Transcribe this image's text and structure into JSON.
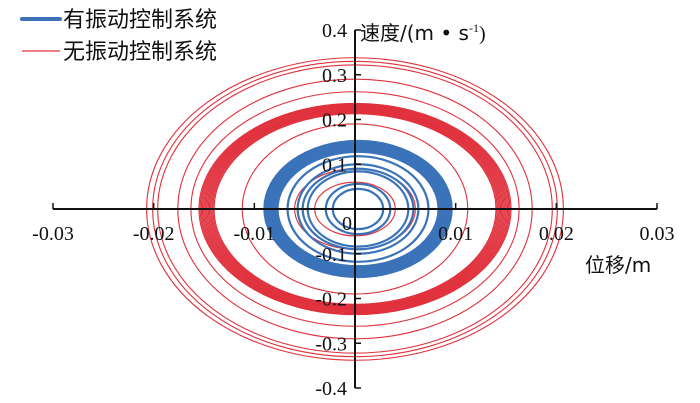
{
  "chart_data": {
    "type": "line",
    "xlabel": "位移/m",
    "ylabel": "速度/(m • s-1)",
    "ylabel_parts": {
      "main": "速度/(m • s",
      "sup": "-1",
      "end": ")"
    },
    "xlim": [
      -0.03,
      0.03
    ],
    "ylim": [
      -0.4,
      0.4
    ],
    "x_ticks": [
      -0.03,
      -0.02,
      -0.01,
      0.01,
      0.02,
      0.03
    ],
    "x_tick_labels": [
      "-0.03",
      "-0.02",
      "-0.01",
      "0.01",
      "0.02",
      "0.03"
    ],
    "y_ticks": [
      0.4,
      0.3,
      0.2,
      0.1,
      -0.1,
      -0.2,
      -0.3,
      -0.4
    ],
    "y_tick_labels": [
      "0.4",
      "0.3",
      "0.2",
      "0.1",
      "-0.1",
      "-0.2",
      "-0.3",
      "-0.4"
    ],
    "origin_label": "0",
    "grid": false,
    "legend_position": "top-left",
    "series": [
      {
        "name": "有振动控制系统",
        "color": "#3b73b9",
        "loops_amplitude_xy": [
          [
            0.006,
            0.1
          ],
          [
            0.0055,
            0.09
          ],
          [
            0.005,
            0.084
          ],
          [
            0.0032,
            0.056
          ],
          [
            0.0025,
            0.045
          ],
          [
            0.007,
            0.118
          ]
        ],
        "band": {
          "x_amp": [
            0.008,
            0.0093
          ],
          "y_amp": [
            0.128,
            0.152
          ],
          "loops": 12
        }
      },
      {
        "name": "无振动控制系统",
        "color": "#e0303c",
        "loops_amplitude_xy": [
          [
            0.0207,
            0.338
          ],
          [
            0.0201,
            0.33
          ],
          [
            0.0196,
            0.322
          ],
          [
            0.0176,
            0.29
          ],
          [
            0.0163,
            0.262
          ],
          [
            0.0112,
            0.19
          ],
          [
            0.006,
            0.09
          ],
          [
            0.004,
            0.06
          ]
        ],
        "band": {
          "x_amp": [
            0.014,
            0.0155
          ],
          "y_amp": [
            0.213,
            0.236
          ],
          "loops": 14
        }
      }
    ]
  }
}
